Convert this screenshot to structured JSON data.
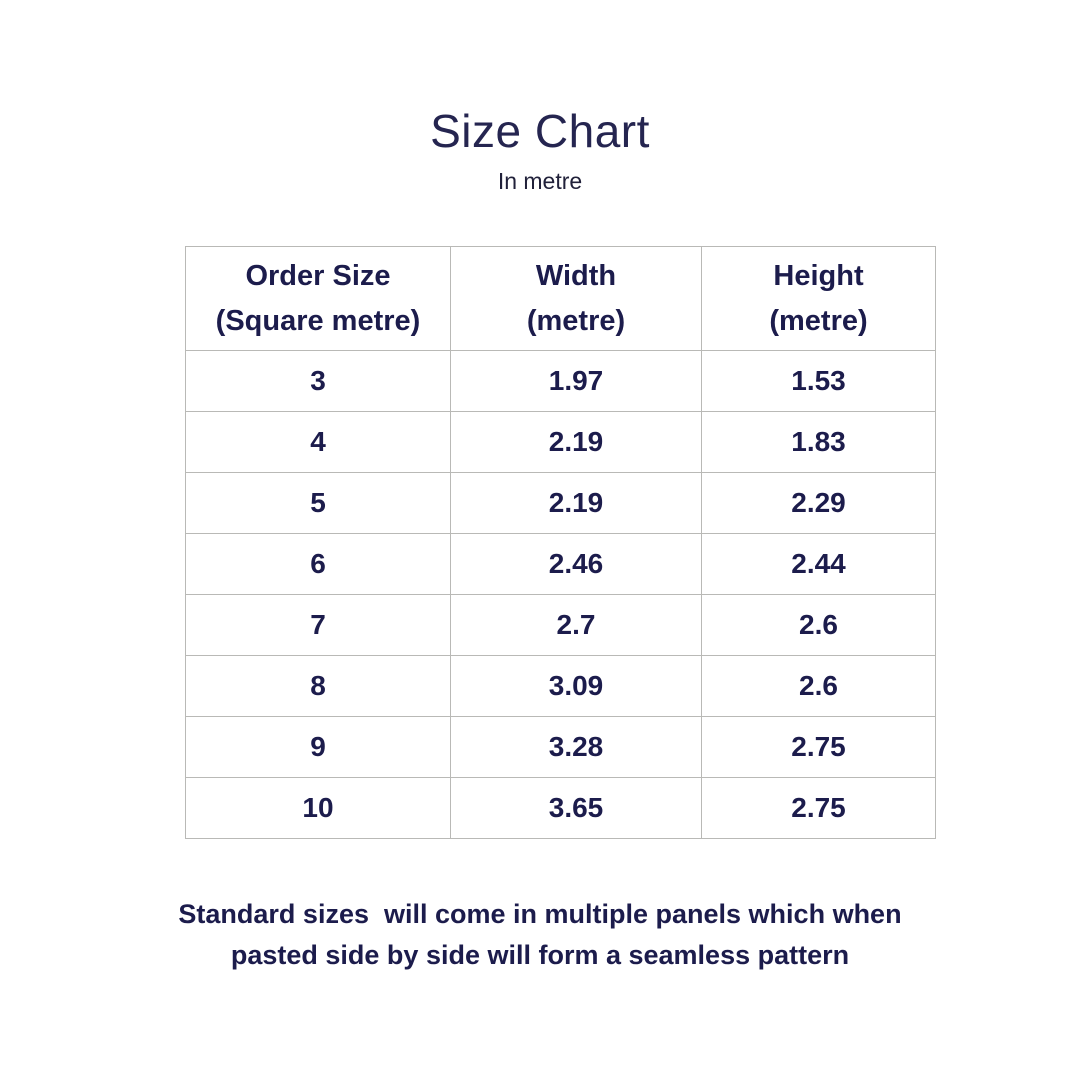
{
  "page": {
    "title": "Size Chart",
    "subtitle": "In metre",
    "footer_note": "Standard sizes  will come in multiple panels which when\npasted side by side will form a seamless pattern"
  },
  "colors": {
    "title_navy": "#252550",
    "text_navy": "#1c1c4c",
    "table_border": "#b9b9b6",
    "background": "#ffffff"
  },
  "chart_data": {
    "type": "table",
    "title": "Size Chart",
    "subtitle": "In metre",
    "columns": [
      "Order Size\n(Square metre)",
      "Width\n(metre)",
      "Height\n(metre)"
    ],
    "rows": [
      [
        "3",
        "1.97",
        "1.53"
      ],
      [
        "4",
        "2.19",
        "1.83"
      ],
      [
        "5",
        "2.19",
        "2.29"
      ],
      [
        "6",
        "2.46",
        "2.44"
      ],
      [
        "7",
        "2.7",
        "2.6"
      ],
      [
        "8",
        "3.09",
        "2.6"
      ],
      [
        "9",
        "3.28",
        "2.75"
      ],
      [
        "10",
        "3.65",
        "2.75"
      ]
    ],
    "note": "Standard sizes  will come in multiple panels which when pasted side by side will form a seamless pattern"
  }
}
